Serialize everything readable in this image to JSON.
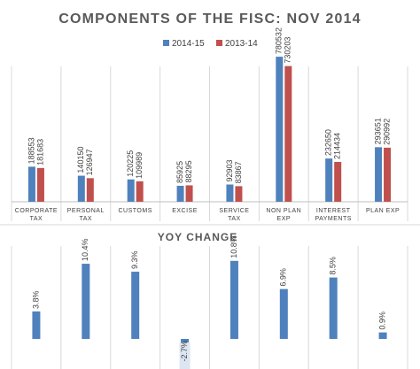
{
  "chart_data": [
    {
      "type": "bar",
      "title": "COMPONENTS OF THE FISC: NOV 2014",
      "categories": [
        [
          "CORPORATE",
          "TAX"
        ],
        [
          "PERSONAL",
          "TAX"
        ],
        [
          "CUSTOMS"
        ],
        [
          "EXCISE"
        ],
        [
          "SERVICE",
          "TAX"
        ],
        [
          "NON PLAN",
          "EXP"
        ],
        [
          "INTEREST",
          "PAYMENTS"
        ],
        [
          "PLAN EXP"
        ]
      ],
      "series": [
        {
          "name": "2014-15",
          "color": "#4f81bd",
          "values": [
            188553,
            140150,
            120225,
            85925,
            92903,
            780532,
            232650,
            293651
          ]
        },
        {
          "name": "2013-14",
          "color": "#c0504d",
          "values": [
            181683,
            126947,
            109989,
            88295,
            83867,
            730203,
            214434,
            290992
          ]
        }
      ],
      "ylim": [
        0,
        800000
      ],
      "legend_position": "top-center",
      "grid": false
    },
    {
      "type": "bar",
      "title": "YOY CHANGE",
      "values": [
        3.8,
        10.4,
        9.3,
        -2.7,
        10.8,
        6.9,
        8.5,
        0.9
      ],
      "labels": [
        "3.8%",
        "10.4%",
        "9.3%",
        "-2.7%",
        "10.8%",
        "6.9%",
        "8.5%",
        "0.9%"
      ],
      "color": "#4f81bd",
      "ylim": [
        -3,
        12
      ],
      "grid": false
    }
  ]
}
